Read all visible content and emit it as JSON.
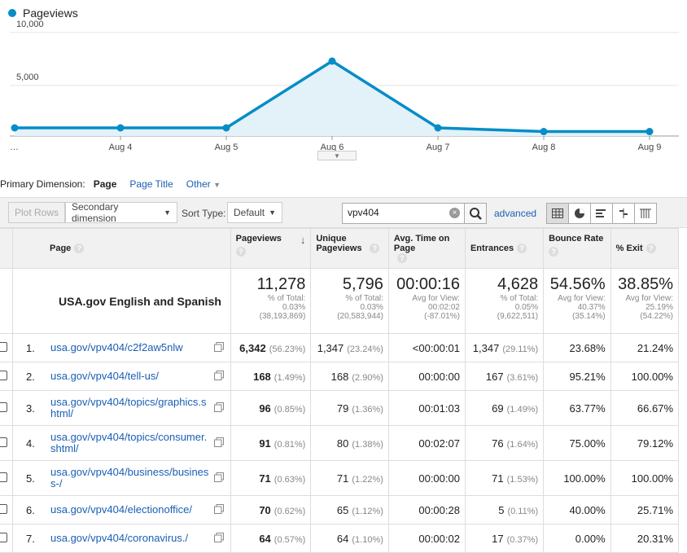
{
  "chart": {
    "legend": "Pageviews",
    "line_color": "#058dc7",
    "fill_color": "#e3f1f8"
  },
  "chart_data": {
    "type": "area",
    "x": [
      "…",
      "Aug 4",
      "Aug 5",
      "Aug 6",
      "Aug 7",
      "Aug 8",
      "Aug 9"
    ],
    "series": [
      {
        "name": "Pageviews",
        "values": [
          1000,
          1000,
          1000,
          7300,
          1000,
          650,
          650
        ]
      }
    ],
    "y_ticks": [
      "10,000",
      "5,000"
    ],
    "ylim": [
      0,
      10000
    ],
    "grid": true
  },
  "dimension": {
    "label": "Primary Dimension:",
    "active": "Page",
    "page_title": "Page Title",
    "other": "Other"
  },
  "toolbar": {
    "plot_rows": "Plot Rows",
    "secondary": "Secondary dimension",
    "sort_label": "Sort Type:",
    "sort_value": "Default",
    "search_value": "vpv404",
    "advanced": "advanced"
  },
  "table": {
    "headers": {
      "page": "Page",
      "pageviews": "Pageviews",
      "unique": "Unique Pageviews",
      "avg_time": "Avg. Time on Page",
      "entrances": "Entrances",
      "bounce": "Bounce Rate",
      "exit": "% Exit"
    },
    "totals": {
      "label": "USA.gov English and Spanish",
      "pageviews": "11,278",
      "pageviews_sub1": "% of Total:",
      "pageviews_sub2": "0.03%",
      "pageviews_sub3": "(38,193,869)",
      "unique": "5,796",
      "unique_sub1": "% of Total:",
      "unique_sub2": "0.03%",
      "unique_sub3": "(20,583,944)",
      "avg": "00:00:16",
      "avg_sub1": "Avg for View:",
      "avg_sub2": "00:02:02",
      "avg_sub3": "(-87.01%)",
      "entr": "4,628",
      "entr_sub1": "% of Total:",
      "entr_sub2": "0.05%",
      "entr_sub3": "(9,622,511)",
      "bounce": "54.56%",
      "bounce_sub1": "Avg for View:",
      "bounce_sub2": "40.37%",
      "bounce_sub3": "(35.14%)",
      "exit": "38.85%",
      "exit_sub1": "Avg for View:",
      "exit_sub2": "25.19%",
      "exit_sub3": "(54.22%)"
    },
    "rows": [
      {
        "n": "1.",
        "page": "usa.gov/vpv404/c2f2aw5nlw",
        "pv": "6,342",
        "pvp": "(56.23%)",
        "u": "1,347",
        "up": "(23.24%)",
        "avg": "<00:00:01",
        "e": "1,347",
        "ep": "(29.11%)",
        "b": "23.68%",
        "x": "21.24%"
      },
      {
        "n": "2.",
        "page": "usa.gov/vpv404/tell-us/",
        "pv": "168",
        "pvp": "(1.49%)",
        "u": "168",
        "up": "(2.90%)",
        "avg": "00:00:00",
        "e": "167",
        "ep": "(3.61%)",
        "b": "95.21%",
        "x": "100.00%"
      },
      {
        "n": "3.",
        "page": "usa.gov/vpv404/topics/graphics.shtml/",
        "pv": "96",
        "pvp": "(0.85%)",
        "u": "79",
        "up": "(1.36%)",
        "avg": "00:01:03",
        "e": "69",
        "ep": "(1.49%)",
        "b": "63.77%",
        "x": "66.67%"
      },
      {
        "n": "4.",
        "page": "usa.gov/vpv404/topics/consumer.shtml/",
        "pv": "91",
        "pvp": "(0.81%)",
        "u": "80",
        "up": "(1.38%)",
        "avg": "00:02:07",
        "e": "76",
        "ep": "(1.64%)",
        "b": "75.00%",
        "x": "79.12%"
      },
      {
        "n": "5.",
        "page": "usa.gov/vpv404/business/business-/",
        "pv": "71",
        "pvp": "(0.63%)",
        "u": "71",
        "up": "(1.22%)",
        "avg": "00:00:00",
        "e": "71",
        "ep": "(1.53%)",
        "b": "100.00%",
        "x": "100.00%"
      },
      {
        "n": "6.",
        "page": "usa.gov/vpv404/electionoffice/",
        "pv": "70",
        "pvp": "(0.62%)",
        "u": "65",
        "up": "(1.12%)",
        "avg": "00:00:28",
        "e": "5",
        "ep": "(0.11%)",
        "b": "40.00%",
        "x": "25.71%"
      },
      {
        "n": "7.",
        "page": "usa.gov/vpv404/coronavirus./",
        "pv": "64",
        "pvp": "(0.57%)",
        "u": "64",
        "up": "(1.10%)",
        "avg": "00:00:02",
        "e": "17",
        "ep": "(0.37%)",
        "b": "0.00%",
        "x": "20.31%"
      }
    ]
  }
}
